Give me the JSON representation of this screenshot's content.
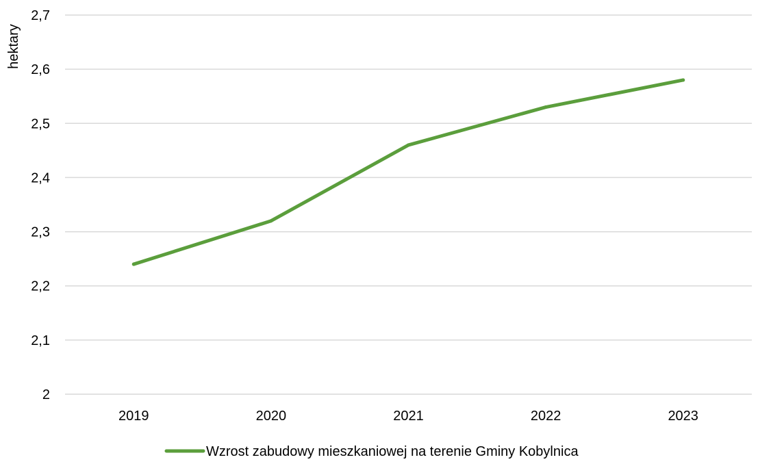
{
  "chart_data": {
    "type": "line",
    "title": "",
    "xlabel": "",
    "ylabel": "hektary",
    "categories": [
      "2019",
      "2020",
      "2021",
      "2022",
      "2023"
    ],
    "series": [
      {
        "name": "Wzrost zabudowy mieszkaniowej na terenie Gminy Kobylnica",
        "values": [
          2.24,
          2.32,
          2.46,
          2.53,
          2.58
        ],
        "color": "#5b9e3c"
      }
    ],
    "ylim": [
      2,
      2.7
    ],
    "yticks": [
      {
        "value": 2.0,
        "label": "2"
      },
      {
        "value": 2.1,
        "label": "2,1"
      },
      {
        "value": 2.2,
        "label": "2,2"
      },
      {
        "value": 2.3,
        "label": "2,3"
      },
      {
        "value": 2.4,
        "label": "2,4"
      },
      {
        "value": 2.5,
        "label": "2,5"
      },
      {
        "value": 2.6,
        "label": "2,6"
      },
      {
        "value": 2.7,
        "label": "2,7"
      }
    ],
    "grid": true,
    "gridline_color": "#d9d9d9",
    "legend_position": "bottom"
  }
}
